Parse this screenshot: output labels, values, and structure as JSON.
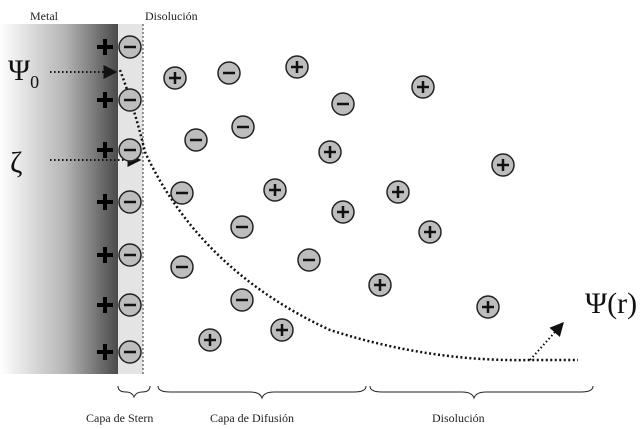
{
  "labels": {
    "metal": "Metal",
    "solution_top": "Disolución",
    "psi_zero": {
      "symbol": "Ψ",
      "subscript": "0"
    },
    "zeta": "ζ",
    "psi_r": "Ψ(r)",
    "stern_layer": "Capa de Stern",
    "diffusion_layer": "Capa de Difusión",
    "solution_bottom": "Disolución"
  }
}
